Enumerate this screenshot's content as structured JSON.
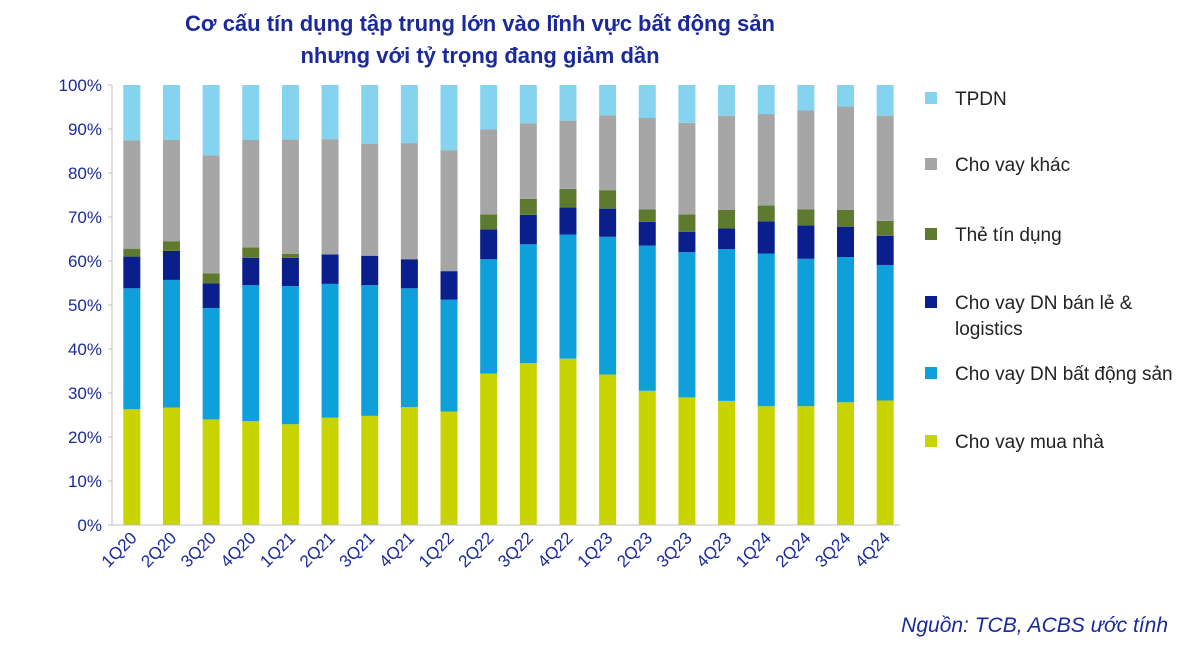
{
  "chart_data": {
    "type": "bar",
    "stacked": true,
    "title": [
      "Cơ cấu tín dụng tập trung lớn vào lĩnh vực bất động sản",
      "nhưng với tỷ trọng đang giảm dần"
    ],
    "xlabel": "",
    "ylabel": "",
    "ylim": [
      0,
      100
    ],
    "yticks": [
      "0%",
      "10%",
      "20%",
      "30%",
      "40%",
      "50%",
      "60%",
      "70%",
      "80%",
      "90%",
      "100%"
    ],
    "categories": [
      "1Q20",
      "2Q20",
      "3Q20",
      "4Q20",
      "1Q21",
      "2Q21",
      "3Q21",
      "4Q21",
      "1Q22",
      "2Q22",
      "3Q22",
      "4Q22",
      "1Q23",
      "2Q23",
      "3Q23",
      "4Q23",
      "1Q24",
      "2Q24",
      "3Q24",
      "4Q24"
    ],
    "legend_position": "right",
    "grid": false,
    "series": [
      {
        "name": "Cho vay mua nhà",
        "color": "#c8d400",
        "values": [
          26.3,
          26.7,
          24.0,
          23.6,
          22.9,
          24.4,
          24.8,
          26.8,
          25.8,
          34.4,
          36.8,
          37.8,
          34.2,
          30.5,
          29.0,
          28.2,
          27.0,
          27.0,
          27.9,
          28.3
        ]
      },
      {
        "name": "Cho vay DN bất động sản",
        "color": "#0fa0dc",
        "values": [
          27.5,
          29.0,
          25.3,
          30.9,
          31.4,
          30.4,
          29.7,
          27.0,
          25.4,
          26.0,
          27.0,
          28.2,
          31.3,
          33.0,
          33.0,
          34.5,
          34.7,
          33.5,
          33.0,
          30.8
        ]
      },
      {
        "name": "Cho vay DN bán lẻ & logistics",
        "color": "#0a1f8c",
        "values": [
          7.2,
          6.6,
          5.6,
          6.2,
          6.4,
          6.7,
          6.7,
          6.6,
          6.5,
          6.8,
          6.7,
          6.2,
          6.4,
          5.4,
          4.6,
          4.7,
          7.3,
          7.6,
          6.9,
          6.6
        ]
      },
      {
        "name": "Thẻ tín dụng",
        "color": "#5e7a2e",
        "values": [
          1.8,
          2.2,
          2.3,
          2.4,
          0.9,
          0.0,
          0.0,
          0.0,
          0.0,
          3.4,
          3.6,
          4.2,
          4.2,
          2.8,
          4.0,
          4.2,
          3.6,
          3.6,
          3.8,
          3.4
        ]
      },
      {
        "name": "Cho vay khác",
        "color": "#a6a6a6",
        "values": [
          24.6,
          23.0,
          26.8,
          24.4,
          26.0,
          26.2,
          25.4,
          26.4,
          27.5,
          19.3,
          17.2,
          15.5,
          17.0,
          20.8,
          20.8,
          21.4,
          20.8,
          22.5,
          23.5,
          23.9
        ]
      },
      {
        "name": "TPDN",
        "color": "#86d3f0",
        "values": [
          12.6,
          12.5,
          16.0,
          12.5,
          12.4,
          12.3,
          13.4,
          13.2,
          14.8,
          10.1,
          8.7,
          8.1,
          6.9,
          7.5,
          8.6,
          7.0,
          6.6,
          5.8,
          4.9,
          7.0
        ]
      }
    ]
  },
  "legend": {
    "items": [
      "TPDN",
      "Cho vay khác",
      "Thẻ tín dụng",
      "Cho vay DN bán lẻ & logistics",
      "Cho vay DN bất động sản",
      "Cho vay mua nhà"
    ],
    "colors": [
      "#86d3f0",
      "#a6a6a6",
      "#5e7a2e",
      "#0a1f8c",
      "#0fa0dc",
      "#c8d400"
    ]
  },
  "source_note": "Nguồn: TCB, ACBS ước tính"
}
